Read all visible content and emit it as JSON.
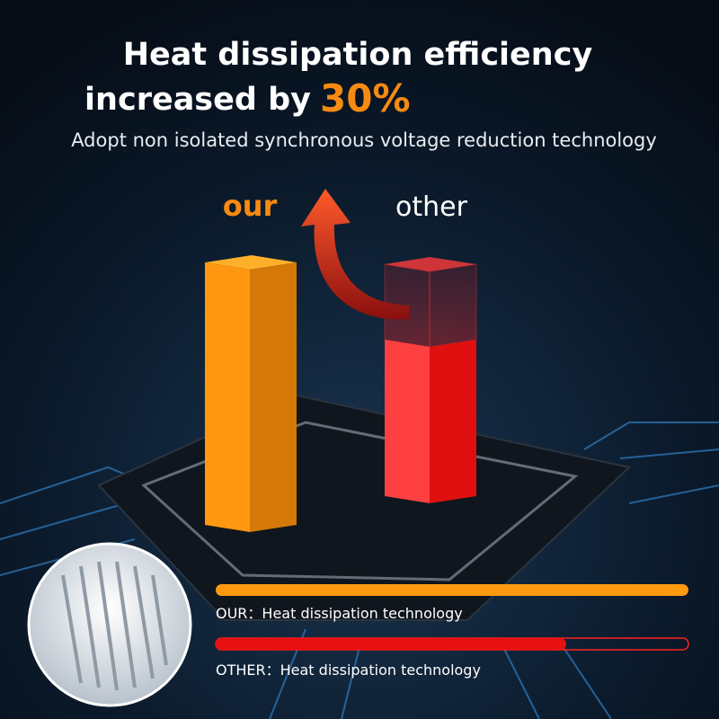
{
  "header": {
    "title_line1": "Heat dissipation efficiency",
    "title_line2": "increased by",
    "highlight": "30%",
    "subtitle": "Adopt non isolated synchronous voltage reduction technology"
  },
  "columns": {
    "our": "our",
    "other": "other"
  },
  "legend": [
    {
      "label": "OUR：Heat dissipation technology"
    },
    {
      "label": "OTHER：Heat dissipation technology"
    }
  ]
}
